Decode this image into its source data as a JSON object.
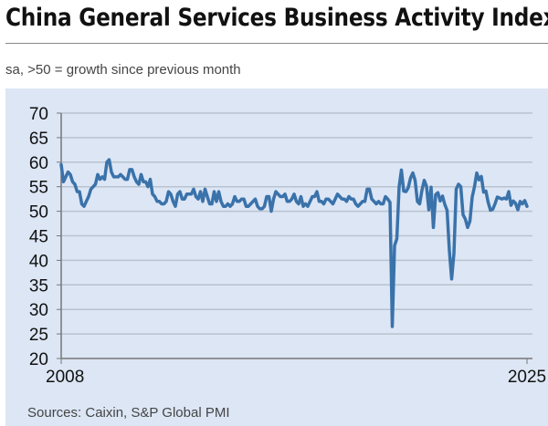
{
  "title": "China General Services Business Activity Index",
  "subtitle": "sa, >50 = growth since previous month",
  "sources": "Sources: Caixin, S&P Global PMI",
  "chart_data": {
    "type": "line",
    "title": "China General Services Business Activity Index",
    "subtitle": "sa, >50 = growth since previous month",
    "xlabel": "",
    "ylabel": "",
    "ylim": [
      20,
      70
    ],
    "yticks": [
      "20",
      "25",
      "30",
      "35",
      "40",
      "45",
      "50",
      "55",
      "60",
      "65",
      "70"
    ],
    "xlim": [
      "2008-01",
      "2025-01"
    ],
    "xticks": [
      "2008",
      "2025"
    ],
    "grid": true,
    "line_color": "#3a72aa",
    "background_color": "#dce6f5",
    "frequency": "monthly",
    "start": "2008-01",
    "series": [
      {
        "values": [
          59.5,
          56,
          57,
          58,
          57.5,
          56,
          55.5,
          54,
          54,
          51.5,
          51,
          52,
          53,
          54.5,
          55,
          55.5,
          57.5,
          56.5,
          57,
          56.5,
          60,
          60.5,
          58,
          57,
          57,
          57,
          57.5,
          57,
          56.5,
          56.5,
          58.5,
          58.5,
          57,
          56,
          55.5,
          57.5,
          56,
          56,
          55,
          56.5,
          53.5,
          53,
          52,
          52,
          51.5,
          51.5,
          52,
          54,
          53.5,
          52,
          51,
          53.5,
          54,
          52.5,
          52.5,
          53.5,
          53.5,
          53.5,
          54.5,
          53,
          52.5,
          54,
          52,
          54.5,
          53,
          51.5,
          51.5,
          54,
          52,
          54,
          52,
          51,
          51,
          51.5,
          51,
          51.5,
          53,
          52,
          52,
          52.5,
          52.5,
          51,
          51,
          51.5,
          52,
          52.5,
          51,
          50.5,
          50.5,
          51,
          53,
          53,
          50,
          52.5,
          54,
          53.5,
          53,
          53,
          53.5,
          52,
          52,
          52.5,
          53.5,
          52,
          51.5,
          53,
          51,
          51.5,
          51,
          52,
          53,
          53,
          54,
          52,
          52,
          51.5,
          52.5,
          52.5,
          52,
          51.5,
          52.5,
          53.5,
          53,
          52.5,
          52.5,
          52,
          53,
          52.5,
          52.5,
          51.5,
          51,
          51.5,
          52,
          52,
          54.5,
          54.5,
          52.5,
          52,
          51.5,
          52,
          51.5,
          51.5,
          53,
          52.5,
          51.8,
          26.5,
          43,
          44.4,
          55,
          58.4,
          54.1,
          54,
          54.8,
          56.8,
          57.8,
          56.3,
          52,
          51.5,
          54.3,
          56.3,
          55.1,
          50.3,
          54.9,
          46.7,
          53.4,
          53.8,
          52.1,
          53.1,
          51.4,
          50.2,
          42,
          36.2,
          41.4,
          54.5,
          55.5,
          55,
          49.3,
          48.4,
          46.7,
          48,
          52.9,
          55,
          57.8,
          56.4,
          57.1,
          53.9,
          54.1,
          51.8,
          50.2,
          50.4,
          51.5,
          52.9,
          52.7,
          52.5,
          52.7,
          52.5,
          54.0,
          51.2,
          52.1,
          51.6,
          50.3,
          52.0,
          51.5,
          52.2,
          51.0
        ]
      }
    ]
  }
}
